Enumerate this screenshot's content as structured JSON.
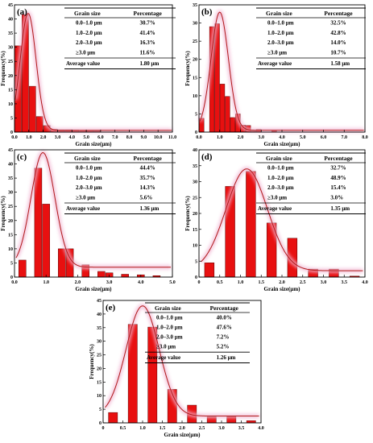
{
  "colors": {
    "bar": "#e81010",
    "curve": "#b01818",
    "glow": "#f2b8d4",
    "axis": "#000000"
  },
  "chart_data": [
    {
      "type": "bar",
      "label": "(a)",
      "xlabel": "Grain size(μm)",
      "ylabel": "Frequency(%)",
      "xlim": [
        0,
        11
      ],
      "ylim": [
        0,
        45
      ],
      "xticks": [
        "0.0",
        "1.0",
        "2.0",
        "3.0",
        "4.0",
        "5.0",
        "6.0",
        "7.0",
        "8.0",
        "9.0",
        "10.0",
        "11.0"
      ],
      "xtick_values": [
        0,
        1,
        2,
        3,
        4,
        5,
        6,
        7,
        8,
        9,
        10,
        11
      ],
      "yticks": [
        0,
        5,
        10,
        15,
        20,
        25,
        30,
        35,
        40,
        45
      ],
      "bin_width": 0.5,
      "bins": [
        {
          "x": 0.25,
          "y": 30.5
        },
        {
          "x": 0.75,
          "y": 41.5
        },
        {
          "x": 1.25,
          "y": 16.2
        },
        {
          "x": 1.75,
          "y": 5.5
        },
        {
          "x": 2.25,
          "y": 2.3
        },
        {
          "x": 2.75,
          "y": 1.0
        },
        {
          "x": 3.25,
          "y": 0.8
        },
        {
          "x": 3.75,
          "y": 0.8
        },
        {
          "x": 4.25,
          "y": 0.7
        },
        {
          "x": 4.75,
          "y": 0.6
        },
        {
          "x": 5.25,
          "y": 0.5
        },
        {
          "x": 5.75,
          "y": 0.4
        }
      ],
      "fit": {
        "mu": 0.95,
        "sigma": 0.55,
        "amp": 42,
        "base": 0.6
      },
      "table": {
        "headers": [
          "Grain size",
          "Percentage"
        ],
        "rows": [
          [
            "0.0–1.0 μm",
            "30.7%"
          ],
          [
            "1.0–2.0 μm",
            "41.4%"
          ],
          [
            "2.0–3.0 μm",
            "16.3%"
          ],
          [
            "≥3.0 μm",
            "11.6%"
          ],
          [
            "Average value",
            "1.80 μm"
          ]
        ]
      }
    },
    {
      "type": "bar",
      "label": "(b)",
      "xlabel": "Grain size(μm)",
      "ylabel": "Frequency(%)",
      "xlim": [
        0,
        8
      ],
      "ylim": [
        0,
        35
      ],
      "xticks": [
        "0.0",
        "1.0",
        "2.0",
        "3.0",
        "4.0",
        "5.0",
        "6.0",
        "7.0",
        "8.0"
      ],
      "xtick_values": [
        0,
        1,
        2,
        3,
        4,
        5,
        6,
        7,
        8
      ],
      "yticks": [
        0,
        5,
        10,
        15,
        20,
        25,
        30,
        35
      ],
      "bin_width": 0.25,
      "bins": [
        {
          "x": 0.125,
          "y": 3.8
        },
        {
          "x": 0.625,
          "y": 29.0
        },
        {
          "x": 0.875,
          "y": 29.8
        },
        {
          "x": 1.125,
          "y": 13.2
        },
        {
          "x": 1.375,
          "y": 9.8
        },
        {
          "x": 1.625,
          "y": 4.0
        },
        {
          "x": 1.875,
          "y": 5.0
        },
        {
          "x": 2.125,
          "y": 1.9
        },
        {
          "x": 2.375,
          "y": 1.8
        },
        {
          "x": 2.625,
          "y": 0.3
        },
        {
          "x": 2.875,
          "y": 0.7
        },
        {
          "x": 3.625,
          "y": 0.4
        }
      ],
      "fit": {
        "mu": 1.0,
        "sigma": 0.42,
        "amp": 33,
        "base": 0.5
      },
      "table": {
        "headers": [
          "Grain size",
          "Percentage"
        ],
        "rows": [
          [
            "0.0–1.0 μm",
            "32.5%"
          ],
          [
            "1.0–2.0 μm",
            "42.8%"
          ],
          [
            "2.0–3.0 μm",
            "14.0%"
          ],
          [
            "≥3.0 μm",
            "10.7%"
          ],
          [
            "Average value",
            "1.58 μm"
          ]
        ]
      }
    },
    {
      "type": "bar",
      "label": "(c)",
      "xlabel": "Grain size(μm)",
      "ylabel": "Frequency(%)",
      "xlim": [
        0,
        5
      ],
      "ylim": [
        0,
        45
      ],
      "xticks": [
        "0.0",
        "1.0",
        "2.0",
        "3.0",
        "4.0",
        "5.0"
      ],
      "xtick_values": [
        0,
        1,
        2,
        3,
        4,
        5
      ],
      "yticks": [
        0,
        5,
        10,
        15,
        20,
        25,
        30,
        35,
        40,
        45
      ],
      "bin_width": 0.25,
      "bins": [
        {
          "x": 0.25,
          "y": 6.0
        },
        {
          "x": 0.75,
          "y": 38.5
        },
        {
          "x": 1.0,
          "y": 25.8
        },
        {
          "x": 1.5,
          "y": 10.0
        },
        {
          "x": 1.75,
          "y": 10.0
        },
        {
          "x": 2.25,
          "y": 4.3
        },
        {
          "x": 2.75,
          "y": 2.0
        },
        {
          "x": 3.0,
          "y": 1.5
        },
        {
          "x": 3.5,
          "y": 1.0
        },
        {
          "x": 4.0,
          "y": 0.8
        },
        {
          "x": 4.5,
          "y": 0.5
        }
      ],
      "fit": {
        "mu": 0.9,
        "sigma": 0.38,
        "amp": 44,
        "base": 3.5
      },
      "table": {
        "headers": [
          "Grain size",
          "Percentage"
        ],
        "rows": [
          [
            "0.0–1.0 μm",
            "44.4%"
          ],
          [
            "1.0–2.0 μm",
            "35.7%"
          ],
          [
            "2.0–3.0 μm",
            "14.3%"
          ],
          [
            "≥3.0 μm",
            "5.6%"
          ],
          [
            "Average value",
            "1.36 μm"
          ]
        ]
      }
    },
    {
      "type": "bar",
      "label": "(d)",
      "xlabel": "Grain size(μm)",
      "ylabel": "Frequency(%)",
      "xlim": [
        0,
        4
      ],
      "ylim": [
        0,
        40
      ],
      "xticks": [
        "0",
        "0.5",
        "1.0",
        "1.5",
        "2.0",
        "2.5",
        "3.0",
        "3.5",
        "4.0"
      ],
      "xtick_values": [
        0,
        0.5,
        1,
        1.5,
        2,
        2.5,
        3,
        3.5,
        4
      ],
      "yticks": [
        0,
        5,
        10,
        15,
        20,
        25,
        30,
        35,
        40
      ],
      "bin_width": 0.25,
      "bins": [
        {
          "x": 0.25,
          "y": 4.5
        },
        {
          "x": 0.75,
          "y": 28.5
        },
        {
          "x": 1.25,
          "y": 33.2
        },
        {
          "x": 1.75,
          "y": 17.0
        },
        {
          "x": 2.25,
          "y": 12.2
        },
        {
          "x": 2.75,
          "y": 2.5
        },
        {
          "x": 3.25,
          "y": 2.5
        },
        {
          "x": 3.75,
          "y": 0.3
        }
      ],
      "fit": {
        "mu": 1.15,
        "sigma": 0.5,
        "amp": 34,
        "base": 2.0
      },
      "table": {
        "headers": [
          "Grain size",
          "Percentage"
        ],
        "rows": [
          [
            "0.0–1.0 μm",
            "32.7%"
          ],
          [
            "1.0–2.0 μm",
            "48.9%"
          ],
          [
            "2.0–3.0 μm",
            "15.4%"
          ],
          [
            "≥3.0 μm",
            "3.0%"
          ],
          [
            "Average value",
            "1.35 μm"
          ]
        ]
      }
    },
    {
      "type": "bar",
      "label": "(e)",
      "xlabel": "Grain size(μm)",
      "ylabel": "Frequency(%)",
      "xlim": [
        0,
        4
      ],
      "ylim": [
        0,
        45
      ],
      "xticks": [
        "0",
        "0.5",
        "1.0",
        "1.5",
        "2.0",
        "2.5",
        "3.0",
        "3.5",
        "4.0"
      ],
      "xtick_values": [
        0,
        0.5,
        1,
        1.5,
        2,
        2.5,
        3,
        3.5,
        4
      ],
      "yticks": [
        0,
        5,
        10,
        15,
        20,
        25,
        30,
        35,
        40,
        45
      ],
      "bin_width": 0.25,
      "bins": [
        {
          "x": 0.25,
          "y": 3.8
        },
        {
          "x": 0.75,
          "y": 36.2
        },
        {
          "x": 1.25,
          "y": 35.2
        },
        {
          "x": 1.75,
          "y": 12.3
        },
        {
          "x": 2.25,
          "y": 6.5
        },
        {
          "x": 2.75,
          "y": 2.2
        },
        {
          "x": 3.25,
          "y": 2.3
        },
        {
          "x": 3.75,
          "y": 0.8
        }
      ],
      "fit": {
        "mu": 1.0,
        "sigma": 0.42,
        "amp": 43,
        "base": 2.5
      },
      "table": {
        "headers": [
          "Grain size",
          "Percentage"
        ],
        "rows": [
          [
            "0.0–1.0 μm",
            "40.0%"
          ],
          [
            "1.0–2.0 μm",
            "47.6%"
          ],
          [
            "2.0–3.0 μm",
            "7.2%"
          ],
          [
            "≥3.0 μm",
            "5.2%"
          ],
          [
            "Average value",
            "1.26 μm"
          ]
        ]
      }
    }
  ]
}
